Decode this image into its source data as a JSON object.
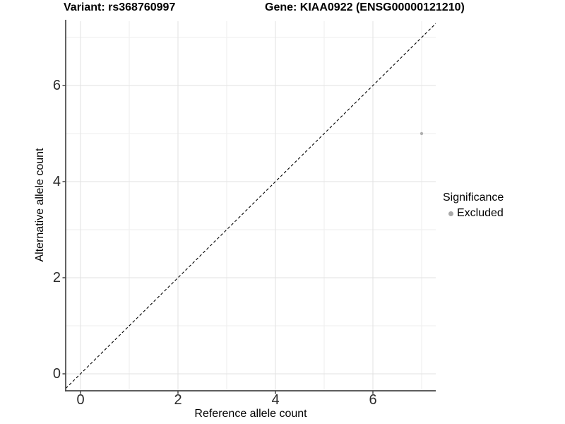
{
  "chart_data": {
    "type": "scatter",
    "title_left": "Variant: rs368760997",
    "title_right": "Gene: KIAA0922 (ENSG00000121210)",
    "xlabel": "Reference allele count",
    "ylabel": "Alternative allele count",
    "x_ticks": [
      0,
      2,
      4,
      6
    ],
    "y_ticks": [
      0,
      2,
      4,
      6
    ],
    "x_minor_ticks": [
      1,
      3,
      5,
      7
    ],
    "y_minor_ticks": [
      1,
      3,
      5,
      7
    ],
    "xlim": [
      -0.3,
      7.29
    ],
    "ylim": [
      -0.32,
      7.32
    ],
    "grid": true,
    "series": [
      {
        "name": "Excluded",
        "color": "#b0b0b0",
        "points": [
          {
            "x": 7,
            "y": 5
          }
        ]
      }
    ],
    "reference_line": {
      "slope": 1,
      "intercept": 0,
      "style": "dashed",
      "color": "#000000"
    },
    "legend": {
      "title": "Significance",
      "position": "right",
      "items": [
        {
          "label": "Excluded",
          "color": "#a9a9a9"
        }
      ]
    }
  },
  "colors": {
    "background": "#ffffff",
    "grid_major": "#e2e2e2",
    "grid_minor": "#eeeeee",
    "axis_line": "#464646",
    "tick_text": "#2b2b2b",
    "point": "#b0b0b0",
    "reference_line": "#000000"
  }
}
